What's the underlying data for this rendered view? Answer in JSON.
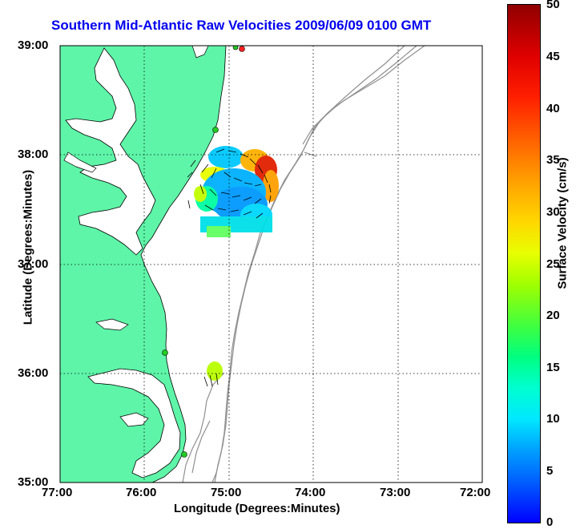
{
  "title": "Southern Mid-Atlantic Raw Velocities 2009/06/09 0100 GMT",
  "axes": {
    "xlabel": "Longitude (Degrees:Minutes)",
    "ylabel": "Latitude (Degrees:Minutes)",
    "x_ticks": [
      "77:00",
      "76:00",
      "75:00",
      "74:00",
      "73:00",
      "72:00"
    ],
    "y_ticks": [
      "39:00",
      "38:00",
      "37:00",
      "36:00",
      "35:00"
    ],
    "xlim": [
      -77,
      -72
    ],
    "ylim": [
      35,
      39
    ],
    "grid": "dotted"
  },
  "colorbar": {
    "label": "Surface Velocity (cm/s)",
    "ticks": [
      "50",
      "45",
      "40",
      "35",
      "30",
      "25",
      "20",
      "15",
      "10",
      "5",
      "0"
    ],
    "range": [
      0,
      50
    ]
  },
  "colors": {
    "land": "#5ef5a8",
    "water": "#ffffff",
    "bathymetry": "#909090",
    "title": "#0000ee",
    "station_green": "#22cc22",
    "station_red": "#ff2222"
  }
}
